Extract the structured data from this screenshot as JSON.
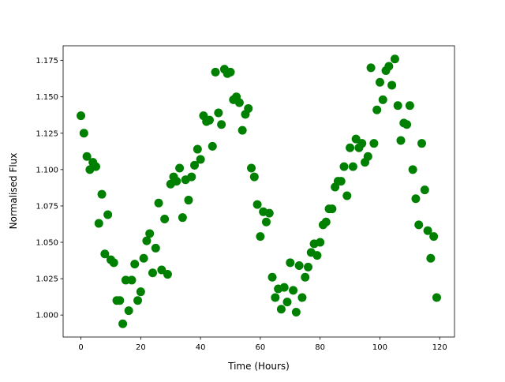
{
  "chart_data": {
    "type": "scatter",
    "title": "",
    "xlabel": "Time (Hours)",
    "ylabel": "Normalised Flux",
    "xlim": [
      -5.95,
      124.95
    ],
    "ylim": [
      0.9849,
      1.1851
    ],
    "xticks": [
      0,
      20,
      40,
      60,
      80,
      100,
      120
    ],
    "xtick_labels": [
      "0",
      "20",
      "40",
      "60",
      "80",
      "100",
      "120"
    ],
    "yticks": [
      1.0,
      1.025,
      1.05,
      1.075,
      1.1,
      1.125,
      1.15,
      1.175
    ],
    "ytick_labels": [
      "1.000",
      "1.025",
      "1.050",
      "1.075",
      "1.100",
      "1.125",
      "1.150",
      "1.175"
    ],
    "grid": false,
    "marker_color": "#008000",
    "x": [
      0,
      1,
      2,
      3,
      4,
      5,
      6,
      7,
      8,
      9,
      10,
      11,
      12,
      13,
      14,
      15,
      16,
      17,
      18,
      19,
      20,
      21,
      22,
      23,
      24,
      25,
      26,
      27,
      28,
      29,
      30,
      31,
      32,
      33,
      34,
      35,
      36,
      37,
      38,
      39,
      40,
      41,
      42,
      43,
      44,
      45,
      46,
      47,
      48,
      49,
      50,
      51,
      52,
      53,
      54,
      55,
      56,
      57,
      58,
      59,
      60,
      61,
      62,
      63,
      64,
      65,
      66,
      67,
      68,
      69,
      70,
      71,
      72,
      73,
      74,
      75,
      76,
      77,
      78,
      79,
      80,
      81,
      82,
      83,
      84,
      85,
      86,
      87,
      88,
      89,
      90,
      91,
      92,
      93,
      94,
      95,
      96,
      97,
      98,
      99,
      100,
      101,
      102,
      103,
      104,
      105,
      106,
      107,
      108,
      109,
      110,
      111,
      112,
      113,
      114,
      115,
      116,
      117,
      118,
      119
    ],
    "y": [
      1.137,
      1.125,
      1.109,
      1.1,
      1.105,
      1.102,
      1.063,
      1.083,
      1.042,
      1.069,
      1.038,
      1.036,
      1.01,
      1.01,
      0.994,
      1.024,
      1.003,
      1.024,
      1.035,
      1.01,
      1.016,
      1.039,
      1.051,
      1.056,
      1.029,
      1.046,
      1.077,
      1.031,
      1.066,
      1.028,
      1.09,
      1.095,
      1.092,
      1.101,
      1.067,
      1.093,
      1.079,
      1.095,
      1.103,
      1.114,
      1.107,
      1.137,
      1.133,
      1.134,
      1.116,
      1.167,
      1.139,
      1.131,
      1.169,
      1.166,
      1.167,
      1.148,
      1.15,
      1.146,
      1.127,
      1.138,
      1.142,
      1.101,
      1.095,
      1.076,
      1.054,
      1.071,
      1.064,
      1.07,
      1.026,
      1.012,
      1.018,
      1.004,
      1.019,
      1.009,
      1.036,
      1.017,
      1.002,
      1.034,
      1.012,
      1.026,
      1.033,
      1.043,
      1.049,
      1.041,
      1.05,
      1.062,
      1.064,
      1.073,
      1.073,
      1.088,
      1.092,
      1.092,
      1.102,
      1.082,
      1.115,
      1.102,
      1.121,
      1.115,
      1.118,
      1.105,
      1.109,
      1.17,
      1.118,
      1.141,
      1.16,
      1.148,
      1.168,
      1.171,
      1.158,
      1.176,
      1.144,
      1.12,
      1.132,
      1.131,
      1.144,
      1.1,
      1.08,
      1.062,
      1.118,
      1.086,
      1.058,
      1.039,
      1.054,
      1.012
    ]
  }
}
